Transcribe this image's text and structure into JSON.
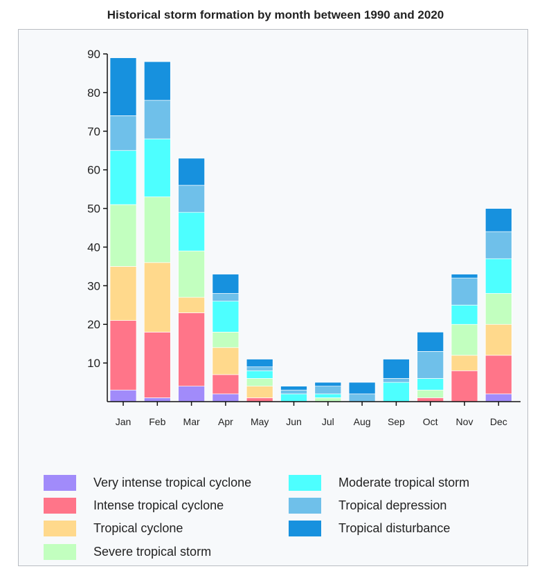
{
  "chart_data": {
    "type": "bar",
    "stacked": true,
    "title": "Historical storm formation by month between 1990 and 2020",
    "xlabel": "",
    "ylabel": "",
    "ylim": [
      0,
      90
    ],
    "yticks": [
      10,
      20,
      30,
      40,
      50,
      60,
      70,
      80,
      90
    ],
    "categories": [
      "Jan",
      "Feb",
      "Mar",
      "Apr",
      "May",
      "Jun",
      "Jul",
      "Aug",
      "Sep",
      "Oct",
      "Nov",
      "Dec"
    ],
    "legend_position": "bottom",
    "series": [
      {
        "name": "Very intense tropical cyclone",
        "color": "#a18bfa",
        "values": [
          3,
          1,
          4,
          2,
          0,
          0,
          0,
          0,
          0,
          0,
          0,
          2
        ]
      },
      {
        "name": "Intense tropical cyclone",
        "color": "#ff7589",
        "values": [
          18,
          17,
          19,
          5,
          1,
          0,
          0,
          0,
          0,
          1,
          8,
          10
        ]
      },
      {
        "name": "Tropical cyclone",
        "color": "#ffd98c",
        "values": [
          14,
          18,
          4,
          7,
          3,
          0,
          0,
          0,
          0,
          0,
          4,
          8
        ]
      },
      {
        "name": "Severe tropical storm",
        "color": "#c2ffbf",
        "values": [
          16,
          17,
          12,
          4,
          2,
          0,
          1,
          0,
          0,
          2,
          8,
          8
        ]
      },
      {
        "name": "Moderate tropical storm",
        "color": "#4dffff",
        "values": [
          14,
          15,
          10,
          8,
          2,
          2,
          1,
          0,
          5,
          3,
          5,
          9
        ]
      },
      {
        "name": "Tropical depression",
        "color": "#6fc0ea",
        "values": [
          9,
          10,
          7,
          2,
          1,
          1,
          2,
          2,
          1,
          7,
          7,
          7
        ]
      },
      {
        "name": "Tropical disturbance",
        "color": "#1791de",
        "values": [
          15,
          10,
          7,
          5,
          2,
          1,
          1,
          3,
          5,
          5,
          1,
          6
        ]
      }
    ]
  }
}
